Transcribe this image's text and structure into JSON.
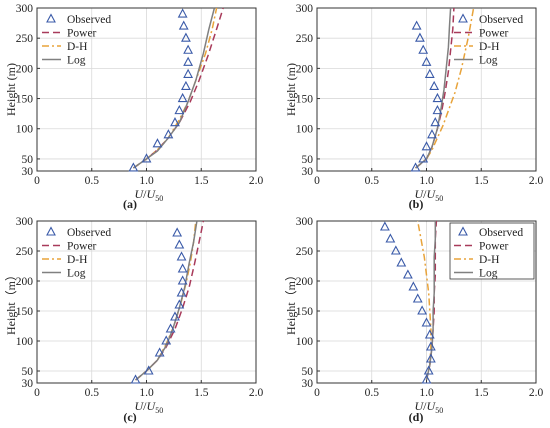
{
  "figure": {
    "legend": {
      "observed": "Observed",
      "power": "Power",
      "dh": "D-H",
      "log": "Log"
    },
    "colors": {
      "observed": "#3a5aa8",
      "power": "#a83a5a",
      "dh": "#e8a33a",
      "log": "#808080",
      "grid": "#d9d9d9",
      "axis": "#333333"
    }
  },
  "chart_data": [
    {
      "type": "line",
      "caption": "(a)",
      "xlabel_main": "U",
      "xlabel_den": "U",
      "xlabel_sub": "50",
      "ylabel": "Height (m)",
      "xlim": [
        0,
        2.0
      ],
      "ylim": [
        30,
        300
      ],
      "xticks": [
        "0",
        "0.5",
        "1.0",
        "1.5",
        "2.0"
      ],
      "yticks": [
        "30",
        "50",
        "100",
        "150",
        "200",
        "250",
        "300"
      ],
      "grid": true,
      "legend_position": "top-left",
      "observed": {
        "name": "Observed",
        "x": [
          0.88,
          1.0,
          1.1,
          1.2,
          1.26,
          1.3,
          1.33,
          1.36,
          1.38,
          1.38,
          1.38,
          1.36,
          1.34,
          1.33
        ],
        "y": [
          35,
          50,
          75,
          90,
          110,
          130,
          150,
          170,
          190,
          210,
          230,
          250,
          270,
          290
        ]
      },
      "series": [
        {
          "name": "Power",
          "color": "#a83a5a",
          "dash": "7,4",
          "x": [
            0.88,
            1.0,
            1.1,
            1.2,
            1.3,
            1.4,
            1.48,
            1.56,
            1.64,
            1.7
          ],
          "y": [
            35,
            50,
            65,
            85,
            110,
            145,
            180,
            220,
            265,
            300
          ]
        },
        {
          "name": "D-H",
          "color": "#e8a33a",
          "dash": "7,3,2,3",
          "x": [
            0.88,
            1.0,
            1.1,
            1.2,
            1.3,
            1.38,
            1.46,
            1.54,
            1.6,
            1.64
          ],
          "y": [
            35,
            50,
            65,
            85,
            115,
            145,
            185,
            225,
            265,
            300
          ]
        },
        {
          "name": "Log",
          "color": "#808080",
          "dash": "",
          "x": [
            0.88,
            1.0,
            1.1,
            1.2,
            1.3,
            1.38,
            1.45,
            1.52,
            1.57,
            1.62
          ],
          "y": [
            35,
            50,
            63,
            85,
            110,
            145,
            180,
            225,
            265,
            300
          ]
        }
      ]
    },
    {
      "type": "line",
      "caption": "(b)",
      "xlabel_main": "U",
      "xlabel_den": "U",
      "xlabel_sub": "50",
      "ylabel": "Height (m)",
      "xlim": [
        0,
        2.0
      ],
      "ylim": [
        30,
        300
      ],
      "xticks": [
        "0",
        "0.5",
        "1.0",
        "1.5",
        "2.0"
      ],
      "yticks": [
        "30",
        "50",
        "100",
        "150",
        "200",
        "250",
        "300"
      ],
      "grid": true,
      "legend_position": "top-right",
      "observed": {
        "name": "Observed",
        "x": [
          0.9,
          0.97,
          1.0,
          1.05,
          1.08,
          1.1,
          1.1,
          1.07,
          1.03,
          1.0,
          0.97,
          0.94,
          0.91
        ],
        "y": [
          35,
          50,
          70,
          90,
          110,
          130,
          150,
          170,
          190,
          210,
          230,
          250,
          270
        ]
      },
      "series": [
        {
          "name": "Power",
          "color": "#a83a5a",
          "dash": "7,4",
          "x": [
            0.9,
            1.0,
            1.05,
            1.1,
            1.14,
            1.17,
            1.2,
            1.22,
            1.24,
            1.25
          ],
          "y": [
            35,
            50,
            70,
            100,
            130,
            160,
            195,
            230,
            265,
            300
          ]
        },
        {
          "name": "D-H",
          "color": "#e8a33a",
          "dash": "7,3,2,3",
          "x": [
            0.9,
            1.0,
            1.05,
            1.1,
            1.15,
            1.2,
            1.26,
            1.32,
            1.38,
            1.43
          ],
          "y": [
            35,
            50,
            65,
            85,
            105,
            130,
            160,
            200,
            250,
            300
          ]
        },
        {
          "name": "Log",
          "color": "#808080",
          "dash": "",
          "x": [
            0.9,
            1.0,
            1.05,
            1.1,
            1.13,
            1.16,
            1.18,
            1.2,
            1.21,
            1.22
          ],
          "y": [
            35,
            50,
            70,
            100,
            130,
            165,
            200,
            235,
            270,
            300
          ]
        }
      ]
    },
    {
      "type": "line",
      "caption": "(c)",
      "xlabel_main": "U",
      "xlabel_den": "U",
      "xlabel_sub": "50",
      "ylabel": "Height（m）",
      "xlim": [
        0,
        2.0
      ],
      "ylim": [
        30,
        300
      ],
      "xticks": [
        "0",
        "0.5",
        "1.0",
        "1.5",
        "2.0"
      ],
      "yticks": [
        "30",
        "50",
        "100",
        "150",
        "200",
        "250",
        "300"
      ],
      "grid": true,
      "legend_position": "top-left",
      "observed": {
        "name": "Observed",
        "x": [
          0.9,
          1.02,
          1.12,
          1.18,
          1.22,
          1.26,
          1.3,
          1.32,
          1.33,
          1.33,
          1.32,
          1.3,
          1.28
        ],
        "y": [
          35,
          50,
          80,
          100,
          120,
          140,
          160,
          180,
          200,
          220,
          240,
          260,
          280
        ]
      },
      "series": [
        {
          "name": "Power",
          "color": "#a83a5a",
          "dash": "7,4",
          "x": [
            0.9,
            1.0,
            1.1,
            1.18,
            1.26,
            1.33,
            1.39,
            1.44,
            1.48,
            1.52
          ],
          "y": [
            35,
            50,
            68,
            90,
            120,
            155,
            190,
            230,
            265,
            300
          ]
        },
        {
          "name": "D-H",
          "color": "#e8a33a",
          "dash": "7,3,2,3",
          "x": [
            0.9,
            1.0,
            1.1,
            1.18,
            1.25,
            1.31,
            1.36,
            1.4,
            1.43,
            1.45
          ],
          "y": [
            35,
            50,
            68,
            95,
            125,
            160,
            195,
            230,
            265,
            300
          ]
        },
        {
          "name": "Log",
          "color": "#808080",
          "dash": "",
          "x": [
            0.9,
            1.0,
            1.1,
            1.18,
            1.24,
            1.3,
            1.35,
            1.39,
            1.43,
            1.46
          ],
          "y": [
            35,
            50,
            68,
            92,
            120,
            155,
            190,
            230,
            265,
            300
          ]
        }
      ]
    },
    {
      "type": "line",
      "caption": "(d)",
      "xlabel_main": "U",
      "xlabel_den": "U",
      "xlabel_sub": "50",
      "ylabel": "Height（m）",
      "xlim": [
        0,
        2.0
      ],
      "ylim": [
        30,
        300
      ],
      "xticks": [
        "0",
        "0.5",
        "1.0",
        "1.5",
        "2.0"
      ],
      "yticks": [
        "30",
        "50",
        "100",
        "150",
        "200",
        "250",
        "300"
      ],
      "grid": true,
      "legend_position": "top-right",
      "observed": {
        "name": "Observed",
        "x": [
          1.0,
          1.02,
          1.04,
          1.04,
          1.03,
          1.0,
          0.96,
          0.92,
          0.88,
          0.83,
          0.77,
          0.72,
          0.67,
          0.62
        ],
        "y": [
          35,
          50,
          70,
          90,
          110,
          130,
          150,
          170,
          190,
          210,
          230,
          250,
          270,
          290
        ]
      },
      "series": [
        {
          "name": "Power",
          "color": "#a83a5a",
          "dash": "7,4",
          "x": [
            1.0,
            1.03,
            1.05,
            1.06,
            1.07,
            1.07,
            1.08,
            1.08,
            1.08,
            1.09
          ],
          "y": [
            35,
            60,
            90,
            120,
            150,
            180,
            210,
            240,
            270,
            300
          ]
        },
        {
          "name": "D-H",
          "color": "#e8a33a",
          "dash": "7,3,2,3",
          "x": [
            1.0,
            1.03,
            1.04,
            1.04,
            1.03,
            1.02,
            1.0,
            0.98,
            0.95,
            0.92
          ],
          "y": [
            35,
            60,
            90,
            120,
            150,
            180,
            210,
            240,
            270,
            300
          ]
        },
        {
          "name": "Log",
          "color": "#808080",
          "dash": "",
          "x": [
            1.0,
            1.03,
            1.05,
            1.06,
            1.06,
            1.07,
            1.07,
            1.07,
            1.08,
            1.08
          ],
          "y": [
            35,
            60,
            90,
            120,
            150,
            180,
            210,
            240,
            270,
            300
          ]
        }
      ]
    }
  ]
}
